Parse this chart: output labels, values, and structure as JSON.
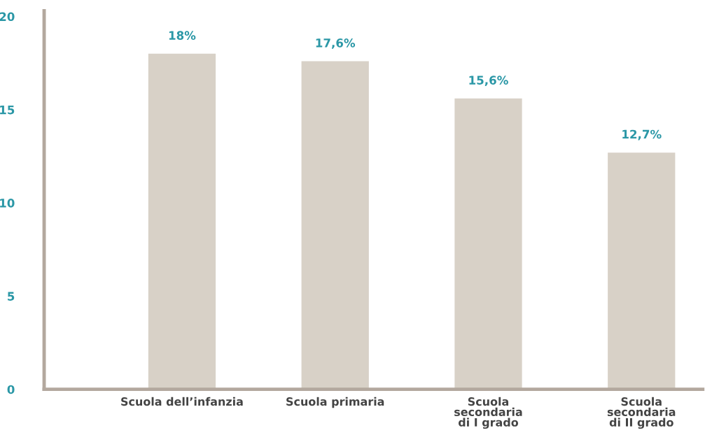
{
  "chart_data": {
    "type": "bar",
    "categories": [
      "Scuola dell’infanzia",
      "Scuola primaria",
      "Scuola\nsecondaria\ndi I grado",
      "Scuola\nsecondaria\ndi II grado"
    ],
    "values": [
      18,
      17.6,
      15.6,
      12.7
    ],
    "value_labels": [
      "18%",
      "17,6%",
      "15,6%",
      "12,7%"
    ],
    "color": "#d8d1c7",
    "ylim": [
      0,
      20.3
    ],
    "yticks": [
      0,
      5,
      10,
      15,
      20
    ],
    "grid": false,
    "legend": false
  }
}
